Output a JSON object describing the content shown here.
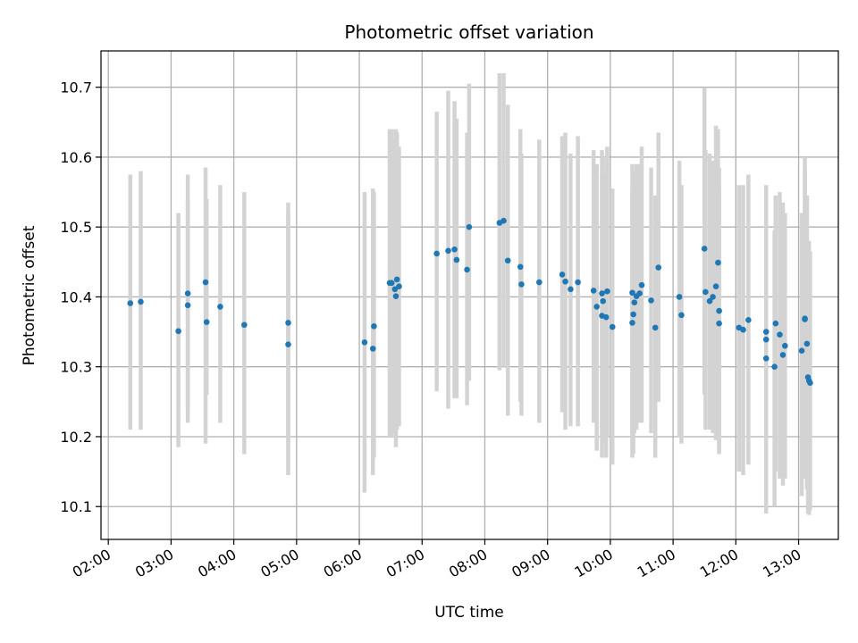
{
  "chart_data": {
    "type": "scatter",
    "title": "Photometric offset variation",
    "xlabel": "UTC time",
    "ylabel": "Photometric offset",
    "xlim": [
      "01:53",
      "13:38"
    ],
    "ylim": [
      10.053,
      10.752
    ],
    "grid": true,
    "x_ticks": [
      "02:00",
      "03:00",
      "04:00",
      "05:00",
      "06:00",
      "07:00",
      "08:00",
      "09:00",
      "10:00",
      "11:00",
      "12:00",
      "13:00"
    ],
    "y_ticks": [
      10.1,
      10.2,
      10.3,
      10.4,
      10.5,
      10.6,
      10.7
    ],
    "colors": {
      "points": "#1f77b4",
      "errorbars": "#d3d3d3",
      "grid": "#b0b0b0"
    },
    "series": [
      {
        "x": [
          "02:21",
          "02:31",
          "03:07",
          "03:16",
          "03:16",
          "03:33",
          "03:34",
          "03:47",
          "04:10",
          "04:52",
          "04:52",
          "06:05",
          "06:13",
          "06:14",
          "06:29",
          "06:31",
          "06:34",
          "06:35",
          "06:36",
          "06:38",
          "07:14",
          "07:25",
          "07:31",
          "07:33",
          "07:43",
          "07:45",
          "08:14",
          "08:18",
          "08:22",
          "08:34",
          "08:35",
          "08:52",
          "09:14",
          "09:17",
          "09:22",
          "09:29",
          "09:44",
          "09:47",
          "09:52",
          "09:52",
          "09:53",
          "09:56",
          "09:57",
          "10:02",
          "10:21",
          "10:21",
          "10:22",
          "10:23",
          "10:25",
          "10:28",
          "10:30",
          "10:39",
          "10:43",
          "10:46",
          "11:06",
          "11:08",
          "11:30",
          "11:31",
          "11:35",
          "11:38",
          "11:41",
          "11:43",
          "11:44",
          "11:44",
          "12:03",
          "12:07",
          "12:12",
          "12:29",
          "12:29",
          "12:29",
          "12:37",
          "12:38",
          "12:42",
          "12:45",
          "12:47",
          "13:03",
          "13:06",
          "13:06",
          "13:08",
          "13:09",
          "13:10",
          "13:11"
        ],
        "y": [
          10.391,
          10.393,
          10.351,
          10.405,
          10.388,
          10.421,
          10.364,
          10.386,
          10.36,
          10.363,
          10.332,
          10.335,
          10.326,
          10.358,
          10.42,
          10.42,
          10.411,
          10.401,
          10.425,
          10.415,
          10.462,
          10.466,
          10.468,
          10.453,
          10.439,
          10.5,
          10.506,
          10.509,
          10.452,
          10.443,
          10.418,
          10.421,
          10.432,
          10.422,
          10.411,
          10.421,
          10.409,
          10.386,
          10.373,
          10.405,
          10.394,
          10.371,
          10.408,
          10.357,
          10.406,
          10.363,
          10.375,
          10.392,
          10.401,
          10.405,
          10.417,
          10.395,
          10.356,
          10.442,
          10.4,
          10.374,
          10.469,
          10.407,
          10.394,
          10.4,
          10.415,
          10.449,
          10.362,
          10.38,
          10.356,
          10.353,
          10.367,
          10.35,
          10.339,
          10.312,
          10.3,
          10.362,
          10.346,
          10.317,
          10.33,
          10.323,
          10.369,
          10.368,
          10.333,
          10.285,
          10.28,
          10.277
        ],
        "yerr_low": [
          10.21,
          10.21,
          10.185,
          10.22,
          10.24,
          10.19,
          10.26,
          10.22,
          10.175,
          10.19,
          10.145,
          10.12,
          10.145,
          10.17,
          10.2,
          10.2,
          10.205,
          10.185,
          10.21,
          10.215,
          10.265,
          10.24,
          10.255,
          10.255,
          10.245,
          10.28,
          10.295,
          10.3,
          10.23,
          10.25,
          10.23,
          10.22,
          10.235,
          10.21,
          10.215,
          10.215,
          10.22,
          10.18,
          10.17,
          10.2,
          10.19,
          10.17,
          10.2,
          10.16,
          10.205,
          10.17,
          10.175,
          10.205,
          10.21,
          10.22,
          10.22,
          10.205,
          10.17,
          10.25,
          10.2,
          10.19,
          10.26,
          10.21,
          10.21,
          10.205,
          10.195,
          10.255,
          10.175,
          10.185,
          10.15,
          10.145,
          10.16,
          10.14,
          10.13,
          10.09,
          10.1,
          10.15,
          10.14,
          10.13,
          10.14,
          10.115,
          10.14,
          10.15,
          10.125,
          10.09,
          10.088,
          10.095
        ],
        "yerr_high": [
          10.575,
          10.58,
          10.52,
          10.575,
          10.54,
          10.585,
          10.54,
          10.56,
          10.55,
          10.535,
          10.52,
          10.55,
          10.555,
          10.55,
          10.64,
          10.64,
          10.625,
          10.64,
          10.635,
          10.615,
          10.665,
          10.695,
          10.68,
          10.655,
          10.635,
          10.705,
          10.72,
          10.72,
          10.675,
          10.64,
          10.605,
          10.625,
          10.63,
          10.635,
          10.605,
          10.63,
          10.61,
          10.59,
          10.575,
          10.61,
          10.6,
          10.575,
          10.615,
          10.555,
          10.59,
          10.555,
          10.575,
          10.58,
          10.59,
          10.59,
          10.615,
          10.585,
          10.545,
          10.635,
          10.595,
          10.56,
          10.7,
          10.61,
          10.605,
          10.595,
          10.645,
          10.64,
          10.555,
          10.585,
          10.56,
          10.56,
          10.575,
          10.56,
          10.545,
          10.54,
          10.495,
          10.545,
          10.55,
          10.535,
          10.52,
          10.52,
          10.6,
          10.585,
          10.545,
          10.48,
          10.48,
          10.465
        ]
      }
    ]
  }
}
